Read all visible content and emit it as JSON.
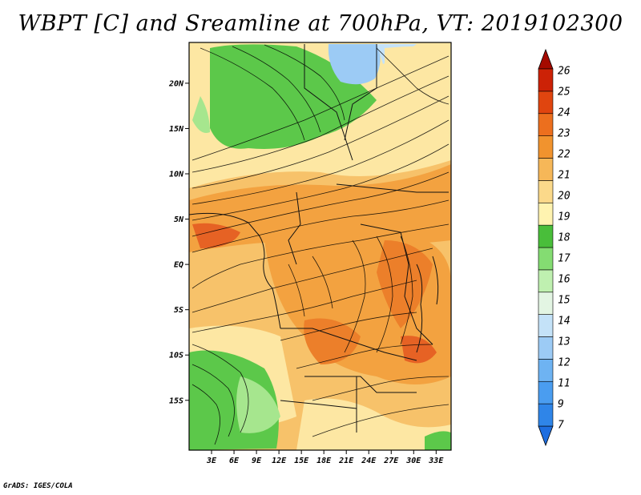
{
  "title": "WBPT [C] and Sreamline at 700hPa, VT: 2019102300",
  "footer": "GrADS: IGES/COLA",
  "map": {
    "lon_range": [
      0,
      35
    ],
    "lat_range": [
      -20.5,
      24.5
    ],
    "lat_labels": [
      "20N",
      "15N",
      "10N",
      "5N",
      "EQ",
      "5S",
      "10S",
      "15S"
    ],
    "lat_values": [
      20,
      15,
      10,
      5,
      0,
      -5,
      -10,
      -15
    ],
    "lon_labels": [
      "3E",
      "6E",
      "9E",
      "12E",
      "15E",
      "18E",
      "21E",
      "24E",
      "27E",
      "30E",
      "33E"
    ],
    "lon_values": [
      3,
      6,
      9,
      12,
      15,
      18,
      21,
      24,
      27,
      30,
      33
    ]
  },
  "colorbar": {
    "labels": [
      "7",
      "9",
      "11",
      "12",
      "13",
      "14",
      "15",
      "16",
      "17",
      "18",
      "19",
      "20",
      "21",
      "22",
      "23",
      "24",
      "25",
      "26"
    ],
    "colors": [
      "#1e6ee0",
      "#2f85e8",
      "#4a9df0",
      "#6eb3f2",
      "#9ccbf5",
      "#c4e2f8",
      "#e3f5e3",
      "#bff0b0",
      "#84dc72",
      "#49be3a",
      "#fff3b0",
      "#fbd98a",
      "#f6b758",
      "#f1932e",
      "#ec6f1e",
      "#e0450f",
      "#cc2206",
      "#a50a00"
    ]
  },
  "colors": {
    "cold": "#7fbcf2",
    "green_dark": "#5cc84a",
    "green_light": "#a6e68e",
    "yellow": "#fde7a3",
    "orange_light": "#f7c26a",
    "orange": "#f3a240",
    "orange_dark": "#ec7f2a",
    "red_orange": "#e66224"
  }
}
